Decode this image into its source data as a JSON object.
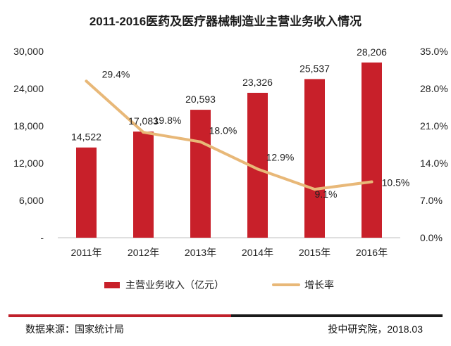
{
  "chart_data": {
    "type": "bar+line",
    "title": "2011-2016医药及医疗器械制造业主营业务收入情况",
    "categories": [
      "2011年",
      "2012年",
      "2013年",
      "2014年",
      "2015年",
      "2016年"
    ],
    "series": [
      {
        "name": "主营业务收入（亿元）",
        "type": "bar",
        "axis": "left",
        "color": "#c8202a",
        "values": [
          14522,
          17083,
          20593,
          23326,
          25537,
          28206
        ],
        "labels": [
          "14,522",
          "17,083",
          "20,593",
          "23,326",
          "25,537",
          "28,206"
        ]
      },
      {
        "name": "增长率",
        "type": "line",
        "axis": "right",
        "color": "#e8b878",
        "values": [
          29.4,
          19.8,
          18.0,
          12.9,
          9.1,
          10.5
        ],
        "labels": [
          "29.4%",
          "19.8%",
          "18.0%",
          "12.9%",
          "9.1%",
          "10.5%"
        ]
      }
    ],
    "y_left": {
      "range": [
        0,
        30000
      ],
      "ticks": [
        0,
        6000,
        12000,
        18000,
        24000,
        30000
      ],
      "tick_labels": [
        "-",
        "6,000",
        "12,000",
        "18,000",
        "24,000",
        "30,000"
      ]
    },
    "y_right": {
      "range": [
        0,
        35
      ],
      "ticks": [
        0,
        7,
        14,
        21,
        28,
        35
      ],
      "tick_labels": [
        "0.0%",
        "7.0%",
        "14.0%",
        "21.0%",
        "28.0%",
        "35.0%"
      ]
    },
    "grid": false,
    "legend": "bottom"
  },
  "footer": {
    "source": "数据来源：国家统计局",
    "credit": "投中研究院，2018.03"
  }
}
